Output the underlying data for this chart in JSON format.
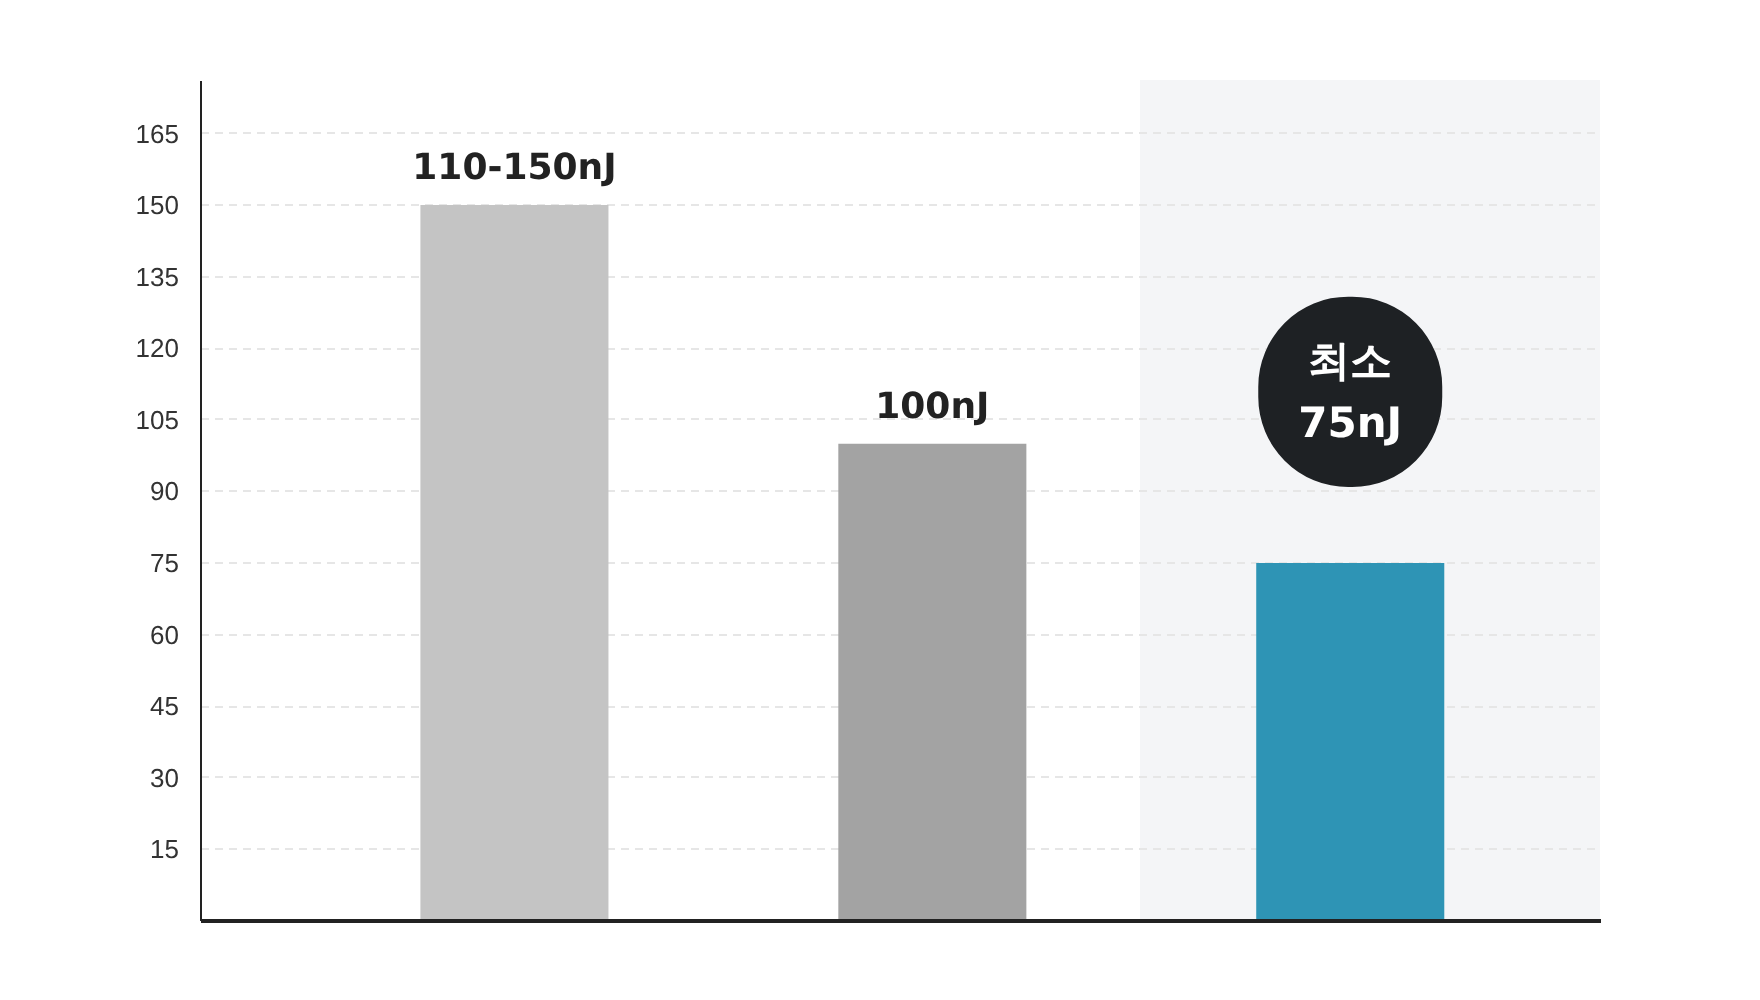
{
  "chart_data": {
    "type": "bar",
    "categories": [
      null,
      null,
      null
    ],
    "values": [
      150,
      100,
      75
    ],
    "colors": [
      "#c4c4c4",
      "#a3a3a3",
      "#2e94b5"
    ],
    "value_labels": [
      "110-150nJ",
      "100nJ",
      "최소\n75nJ"
    ],
    "ylim": [
      0,
      176
    ],
    "yticks": [
      15,
      30,
      45,
      60,
      75,
      90,
      105,
      120,
      135,
      150,
      165
    ],
    "grid": "y"
  }
}
